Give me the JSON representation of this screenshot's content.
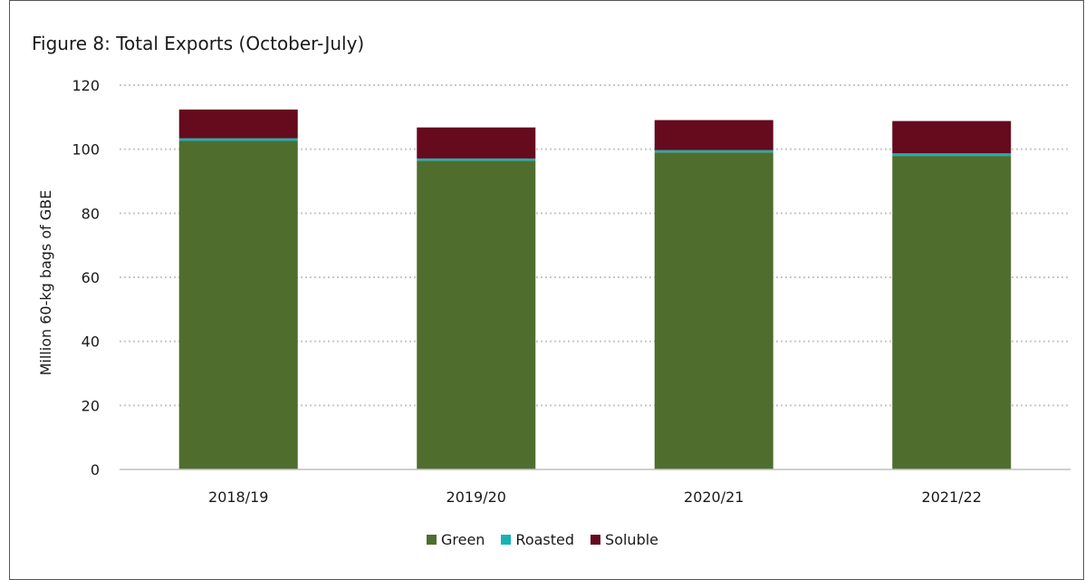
{
  "chart_data": {
    "type": "bar",
    "stacked": true,
    "title": "Figure 8: Total Exports (October-July)",
    "xlabel": "",
    "ylabel": "Million 60-kg bags of GBE",
    "ylim": [
      0,
      120
    ],
    "yticks": [
      0,
      20,
      40,
      60,
      80,
      100,
      120
    ],
    "grid": true,
    "legend_position": "bottom",
    "categories": [
      "2018/19",
      "2019/20",
      "2020/21",
      "2021/22"
    ],
    "series": [
      {
        "name": "Green",
        "color": "#4f6e2e",
        "values": [
          102.6,
          96.4,
          99.0,
          97.9
        ]
      },
      {
        "name": "Roasted",
        "color": "#17b3b3",
        "values": [
          0.8,
          0.7,
          0.7,
          0.8
        ]
      },
      {
        "name": "Soluble",
        "color": "#660a1e",
        "values": [
          9.0,
          9.7,
          9.4,
          10.1
        ]
      }
    ]
  }
}
